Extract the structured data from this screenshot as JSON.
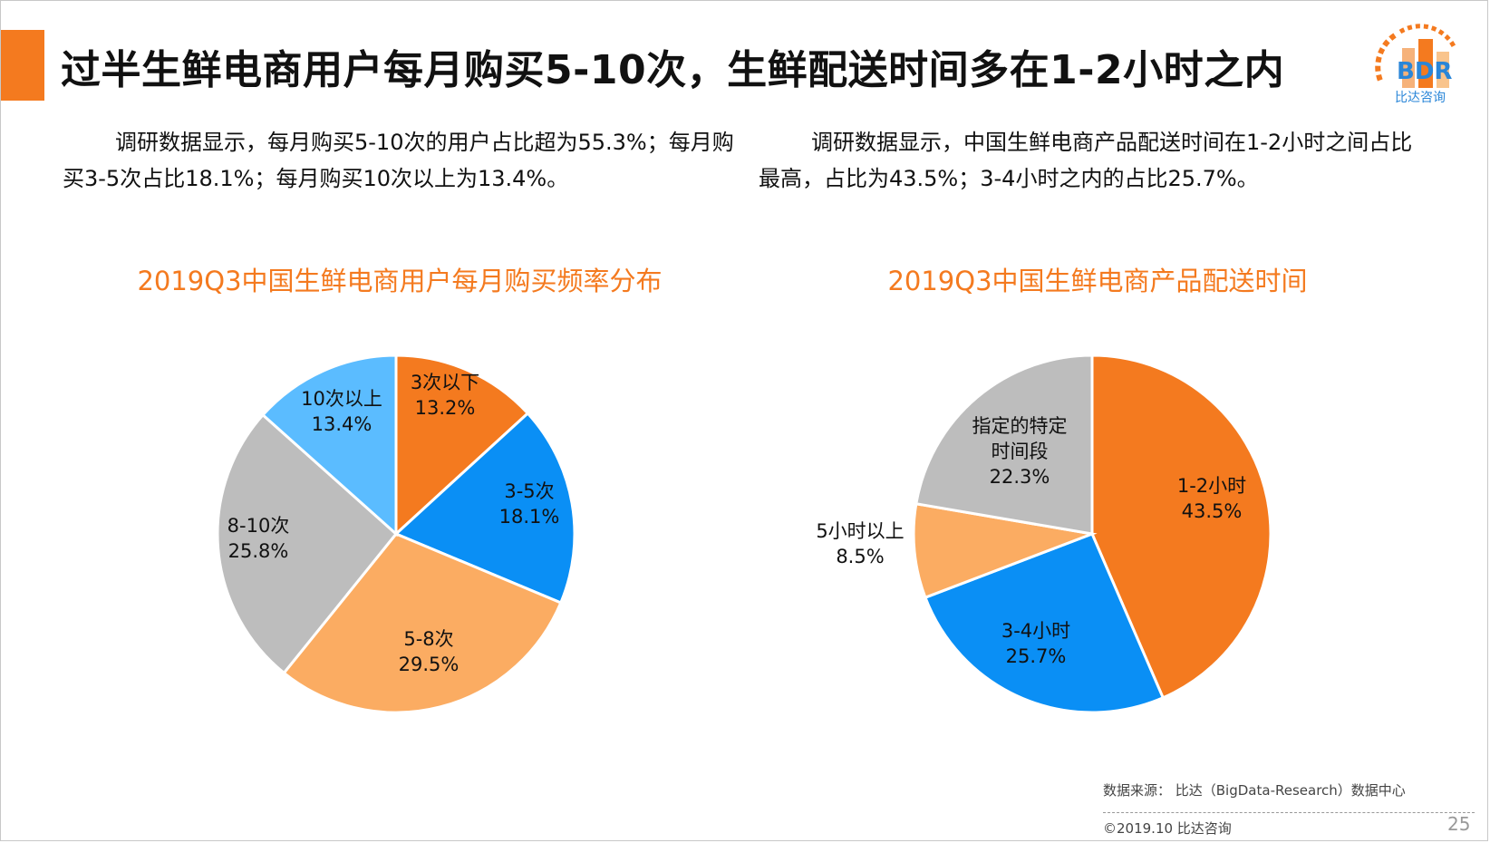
{
  "slide": {
    "title": "过半生鲜电商用户每月购买5-10次，生鲜配送时间多在1-2小时之内",
    "logo": {
      "mark": "BDR",
      "caption": "比达咨询"
    },
    "desc_left": "调研数据显示，每月购买5-10次的用户占比超为55.3%；每月购买3-5次占比18.1%；每月购买10次以上为13.4%。",
    "desc_right": "调研数据显示，中国生鲜电商产品配送时间在1-2小时之间占比最高，占比为43.5%；3-4小时之内的占比25.7%。",
    "footer": {
      "source": "数据来源： 比达（BigData-Research）数据中心",
      "copyright": "©2019.10  比达咨询",
      "page": "25"
    }
  },
  "chart_data": [
    {
      "type": "pie",
      "title": "2019Q3中国生鲜电商用户每月购买频率分布",
      "slices": [
        {
          "label": "3次以下",
          "value": 13.2,
          "display": "13.2%",
          "color": "#f47a1f"
        },
        {
          "label": "3-5次",
          "value": 18.1,
          "display": "18.1%",
          "color": "#0a8ff5"
        },
        {
          "label": "5-8次",
          "value": 29.5,
          "display": "29.5%",
          "color": "#fbac62"
        },
        {
          "label": "8-10次",
          "value": 25.8,
          "display": "25.8%",
          "color": "#bdbdbd"
        },
        {
          "label": "10次以上",
          "value": 13.4,
          "display": "13.4%",
          "color": "#5bbcff"
        }
      ]
    },
    {
      "type": "pie",
      "title": "2019Q3中国生鲜电商产品配送时间",
      "slices": [
        {
          "label": "1-2小时",
          "value": 43.5,
          "display": "43.5%",
          "color": "#f47a1f"
        },
        {
          "label": "3-4小时",
          "value": 25.7,
          "display": "25.7%",
          "color": "#0a8ff5"
        },
        {
          "label": "5小时以上",
          "value": 8.5,
          "display": "8.5%",
          "color": "#fbac62"
        },
        {
          "label": "指定的特定时间段",
          "value": 22.3,
          "display": "22.3%",
          "color": "#bdbdbd"
        }
      ]
    }
  ]
}
